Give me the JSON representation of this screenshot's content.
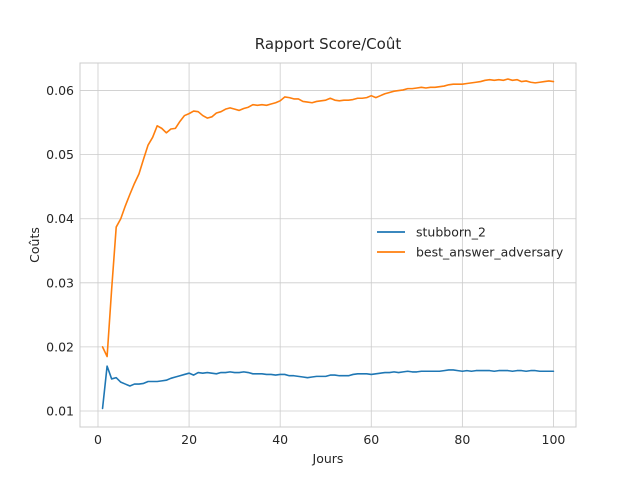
{
  "chart_data": {
    "type": "line",
    "title": "Rapport Score/Coût",
    "xlabel": "Jours",
    "ylabel": "Coûts",
    "xlim": [
      -3.95,
      104.95
    ],
    "ylim": [
      0.0075,
      0.0643
    ],
    "x_ticks": [
      0,
      20,
      40,
      60,
      80,
      100
    ],
    "y_ticks": [
      0.01,
      0.02,
      0.03,
      0.04,
      0.05,
      0.06
    ],
    "x_tick_labels": [
      "0",
      "20",
      "40",
      "60",
      "80",
      "100"
    ],
    "y_tick_labels": [
      "0.01",
      "0.02",
      "0.03",
      "0.04",
      "0.05",
      "0.06"
    ],
    "grid": true,
    "legend_position": "center-right",
    "x": [
      1,
      2,
      3,
      4,
      5,
      6,
      7,
      8,
      9,
      10,
      11,
      12,
      13,
      14,
      15,
      16,
      17,
      18,
      19,
      20,
      21,
      22,
      23,
      24,
      25,
      26,
      27,
      28,
      29,
      30,
      31,
      32,
      33,
      34,
      35,
      36,
      37,
      38,
      39,
      40,
      41,
      42,
      43,
      44,
      45,
      46,
      47,
      48,
      49,
      50,
      51,
      52,
      53,
      54,
      55,
      56,
      57,
      58,
      59,
      60,
      61,
      62,
      63,
      64,
      65,
      66,
      67,
      68,
      69,
      70,
      71,
      72,
      73,
      74,
      75,
      76,
      77,
      78,
      79,
      80,
      81,
      82,
      83,
      84,
      85,
      86,
      87,
      88,
      89,
      90,
      91,
      92,
      93,
      94,
      95,
      96,
      97,
      98,
      99,
      100
    ],
    "series": [
      {
        "name": "stubborn_2",
        "color": "#1f77b4",
        "values": [
          0.0104,
          0.017,
          0.015,
          0.0152,
          0.0145,
          0.0142,
          0.0139,
          0.0142,
          0.0142,
          0.0143,
          0.0146,
          0.0146,
          0.0146,
          0.0147,
          0.0148,
          0.0151,
          0.0153,
          0.0155,
          0.0157,
          0.0159,
          0.0156,
          0.016,
          0.0159,
          0.016,
          0.0159,
          0.0158,
          0.016,
          0.016,
          0.0161,
          0.016,
          0.016,
          0.0161,
          0.016,
          0.0158,
          0.0158,
          0.0158,
          0.0157,
          0.0157,
          0.0156,
          0.0157,
          0.0157,
          0.0155,
          0.0155,
          0.0154,
          0.0153,
          0.0152,
          0.0153,
          0.0154,
          0.0154,
          0.0154,
          0.0156,
          0.0156,
          0.0155,
          0.0155,
          0.0155,
          0.0157,
          0.0158,
          0.0158,
          0.0158,
          0.0157,
          0.0158,
          0.0159,
          0.016,
          0.016,
          0.0161,
          0.016,
          0.0161,
          0.0162,
          0.0161,
          0.0161,
          0.0162,
          0.0162,
          0.0162,
          0.0162,
          0.0162,
          0.0163,
          0.0164,
          0.0164,
          0.0163,
          0.0162,
          0.0163,
          0.0162,
          0.0163,
          0.0163,
          0.0163,
          0.0163,
          0.0162,
          0.0163,
          0.0163,
          0.0163,
          0.0162,
          0.0163,
          0.0163,
          0.0162,
          0.0163,
          0.0163,
          0.0162,
          0.0162,
          0.0162,
          0.0162
        ]
      },
      {
        "name": "best_answer_adversary",
        "color": "#ff7f0e",
        "values": [
          0.02,
          0.0185,
          0.029,
          0.0387,
          0.04,
          0.042,
          0.0438,
          0.0455,
          0.047,
          0.0493,
          0.0515,
          0.0527,
          0.0545,
          0.0541,
          0.0534,
          0.054,
          0.0541,
          0.0552,
          0.0561,
          0.0564,
          0.0568,
          0.0567,
          0.0561,
          0.0557,
          0.0559,
          0.0565,
          0.0567,
          0.0571,
          0.0573,
          0.0571,
          0.0569,
          0.0572,
          0.0574,
          0.0578,
          0.0577,
          0.0578,
          0.0577,
          0.0579,
          0.0581,
          0.0584,
          0.059,
          0.0589,
          0.0587,
          0.0587,
          0.0583,
          0.0582,
          0.0581,
          0.0583,
          0.0584,
          0.0585,
          0.0588,
          0.0585,
          0.0584,
          0.0585,
          0.0585,
          0.0586,
          0.0588,
          0.0588,
          0.0589,
          0.0592,
          0.0589,
          0.0592,
          0.0595,
          0.0597,
          0.0599,
          0.06,
          0.0601,
          0.0603,
          0.0603,
          0.0604,
          0.0605,
          0.0604,
          0.0605,
          0.0605,
          0.0606,
          0.0607,
          0.0609,
          0.061,
          0.061,
          0.061,
          0.0611,
          0.0612,
          0.0613,
          0.0614,
          0.0616,
          0.0617,
          0.0616,
          0.0617,
          0.0616,
          0.0618,
          0.0616,
          0.0617,
          0.0614,
          0.0615,
          0.0613,
          0.0612,
          0.0613,
          0.0614,
          0.0615,
          0.0614
        ]
      }
    ]
  }
}
